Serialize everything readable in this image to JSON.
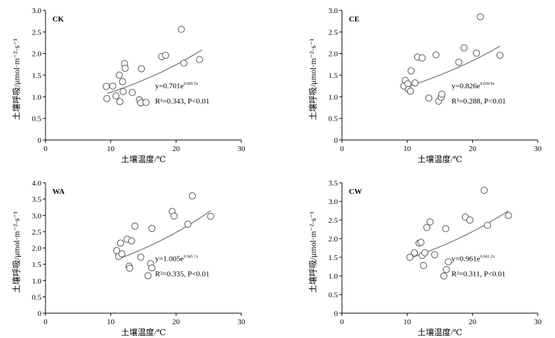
{
  "chart_data": [
    {
      "type": "scatter",
      "panel_label": "CK",
      "xlabel": "土壤温度/℃",
      "ylabel": "土壤呼吸/μmol·m⁻²·s⁻¹",
      "xlim": [
        0,
        30
      ],
      "ylim": [
        0,
        3.0
      ],
      "xticks": [
        0,
        10,
        20,
        30
      ],
      "yticks": [
        0,
        0.5,
        1.0,
        1.5,
        2.0,
        2.5,
        3.0
      ],
      "ytick_labels": [
        "0",
        "0.5",
        "1.0",
        "1.5",
        "2.0",
        "2.5",
        "3.0"
      ],
      "equation": "y=0.701e",
      "exponent": "0.045 5x",
      "r2_text": "R²=0.343",
      "p_text": "P<0.01",
      "fit": {
        "a": 0.701,
        "b": 0.0455,
        "x_range": [
          9.5,
          24
        ]
      },
      "points": [
        [
          9.3,
          1.24
        ],
        [
          9.4,
          0.96
        ],
        [
          10.3,
          1.25
        ],
        [
          10.8,
          1.02
        ],
        [
          11.3,
          1.5
        ],
        [
          11.4,
          0.89
        ],
        [
          11.8,
          1.35
        ],
        [
          11.9,
          1.12
        ],
        [
          12.1,
          1.77
        ],
        [
          12.2,
          1.66
        ],
        [
          13.3,
          1.1
        ],
        [
          14.4,
          0.93
        ],
        [
          14.6,
          0.86
        ],
        [
          14.7,
          1.65
        ],
        [
          15.4,
          0.87
        ],
        [
          17.8,
          1.93
        ],
        [
          18.4,
          1.96
        ],
        [
          20.8,
          2.56
        ],
        [
          21.2,
          1.78
        ],
        [
          23.6,
          1.86
        ]
      ]
    },
    {
      "type": "scatter",
      "panel_label": "CE",
      "xlabel": "土壤温度/℃",
      "ylabel": "土壤呼吸/μmol·m⁻²·s⁻¹",
      "xlim": [
        0,
        30
      ],
      "ylim": [
        0,
        3.0
      ],
      "xticks": [
        0,
        10,
        20,
        30
      ],
      "yticks": [
        0,
        0.5,
        1.0,
        1.5,
        2.0,
        2.5,
        3.0
      ],
      "ytick_labels": [
        "0",
        "0.5",
        "1.0",
        "1.5",
        "2.0",
        "2.5",
        "3.0"
      ],
      "equation": "y=0.826e",
      "exponent": "0.039 9x",
      "r2_text": "R²=0.288",
      "p_text": "P<0.01",
      "fit": {
        "a": 0.826,
        "b": 0.0399,
        "x_range": [
          9.7,
          24.2
        ]
      },
      "points": [
        [
          9.5,
          1.25
        ],
        [
          9.7,
          1.38
        ],
        [
          10.1,
          1.3
        ],
        [
          10.2,
          1.17
        ],
        [
          10.5,
          1.13
        ],
        [
          10.6,
          1.6
        ],
        [
          11.2,
          1.32
        ],
        [
          11.6,
          1.92
        ],
        [
          12.3,
          1.9
        ],
        [
          13.3,
          0.97
        ],
        [
          14.4,
          1.97
        ],
        [
          14.8,
          0.9
        ],
        [
          15.2,
          0.99
        ],
        [
          15.3,
          1.06
        ],
        [
          17.9,
          1.8
        ],
        [
          18.7,
          2.13
        ],
        [
          20.6,
          2.01
        ],
        [
          21.2,
          2.85
        ],
        [
          24.2,
          1.96
        ]
      ]
    },
    {
      "type": "scatter",
      "panel_label": "WA",
      "xlabel": "土壤温度/℃",
      "ylabel": "土壤呼吸/μmol·m⁻²·s⁻¹",
      "xlim": [
        0,
        30
      ],
      "ylim": [
        0,
        4.0
      ],
      "xticks": [
        0,
        10,
        20,
        30
      ],
      "yticks": [
        0,
        0.5,
        1.0,
        1.5,
        2.0,
        2.5,
        3.0,
        3.5,
        4.0
      ],
      "ytick_labels": [
        "0",
        "0.5",
        "1.0",
        "1.5",
        "2.0",
        "2.5",
        "3.0",
        "3.5",
        "4.0"
      ],
      "equation": "y=1.005e",
      "exponent": "0.045 1x",
      "r2_text": "R²=0.335",
      "p_text": "P<0.01",
      "fit": {
        "a": 1.005,
        "b": 0.0451,
        "x_range": [
          11,
          25.3
        ]
      },
      "points": [
        [
          10.9,
          1.92
        ],
        [
          11.2,
          1.74
        ],
        [
          11.5,
          2.15
        ],
        [
          11.7,
          1.82
        ],
        [
          12.5,
          2.27
        ],
        [
          12.8,
          1.44
        ],
        [
          12.9,
          1.38
        ],
        [
          13.2,
          2.22
        ],
        [
          13.7,
          2.67
        ],
        [
          14.6,
          1.72
        ],
        [
          15.7,
          1.15
        ],
        [
          16.1,
          1.52
        ],
        [
          16.3,
          1.39
        ],
        [
          16.3,
          2.6
        ],
        [
          19.4,
          3.12
        ],
        [
          19.7,
          2.98
        ],
        [
          21.8,
          2.73
        ],
        [
          22.5,
          3.6
        ],
        [
          25.3,
          2.97
        ]
      ]
    },
    {
      "type": "scatter",
      "panel_label": "CW",
      "xlabel": "土壤温度/℃",
      "ylabel": "土壤呼吸/μmol·m⁻²·s⁻¹",
      "xlim": [
        0,
        30
      ],
      "ylim": [
        0,
        3.5
      ],
      "xticks": [
        0,
        10,
        20,
        30
      ],
      "yticks": [
        0,
        0.5,
        1.0,
        1.5,
        2.0,
        2.5,
        3.0,
        3.5
      ],
      "ytick_labels": [
        "0",
        "0.5",
        "1.0",
        "1.5",
        "2.0",
        "2.5",
        "3.0",
        "3.5"
      ],
      "equation": "y=0.961e",
      "exponent": "0.041 2x",
      "r2_text": "R²=0.311",
      "p_text": "P<0.01",
      "fit": {
        "a": 0.961,
        "b": 0.0412,
        "x_range": [
          10.4,
          25.5
        ]
      },
      "points": [
        [
          10.4,
          1.5
        ],
        [
          11.1,
          1.62
        ],
        [
          11.8,
          1.88
        ],
        [
          12.1,
          1.9
        ],
        [
          12.3,
          1.55
        ],
        [
          12.5,
          1.28
        ],
        [
          12.7,
          1.62
        ],
        [
          13.0,
          2.3
        ],
        [
          13.5,
          2.45
        ],
        [
          14.2,
          1.57
        ],
        [
          15.6,
          1.0
        ],
        [
          15.9,
          2.27
        ],
        [
          16.0,
          1.17
        ],
        [
          16.3,
          1.38
        ],
        [
          18.9,
          2.58
        ],
        [
          19.6,
          2.5
        ],
        [
          21.8,
          3.3
        ],
        [
          22.3,
          2.36
        ],
        [
          25.5,
          2.62
        ]
      ]
    }
  ]
}
